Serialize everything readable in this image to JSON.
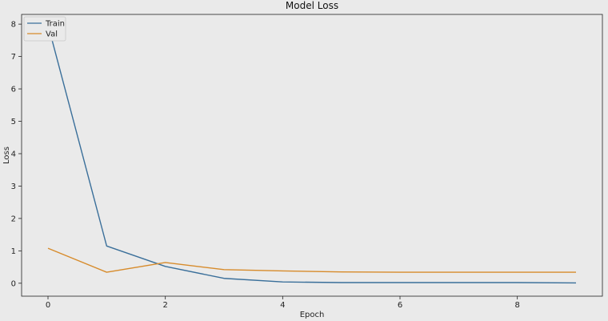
{
  "chart_data": {
    "type": "line",
    "title": "Model Loss",
    "xlabel": "Epoch",
    "ylabel": "Loss",
    "x": [
      0,
      1,
      2,
      3,
      4,
      5,
      6,
      7,
      8,
      9
    ],
    "xlim": [
      -0.45,
      9.45
    ],
    "ylim": [
      -0.4,
      8.3
    ],
    "xticks": [
      0,
      2,
      4,
      6,
      8
    ],
    "yticks": [
      0,
      1,
      2,
      3,
      4,
      5,
      6,
      7,
      8
    ],
    "grid": false,
    "legend_position": "top-left",
    "series": [
      {
        "name": "Train",
        "color": "#3a6f9a",
        "values": [
          7.98,
          1.15,
          0.52,
          0.15,
          0.04,
          0.02,
          0.02,
          0.02,
          0.02,
          0.01
        ]
      },
      {
        "name": "Val",
        "color": "#d78b2b",
        "values": [
          1.08,
          0.34,
          0.64,
          0.42,
          0.38,
          0.35,
          0.34,
          0.34,
          0.34,
          0.34
        ]
      }
    ]
  }
}
